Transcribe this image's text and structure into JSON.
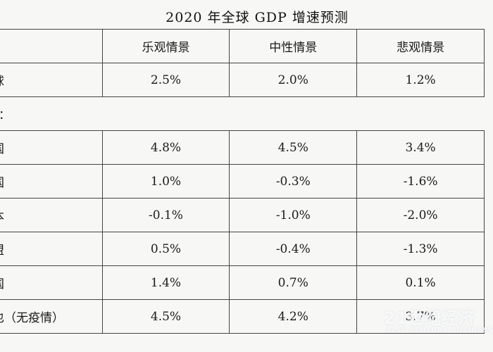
{
  "title": "2020 年全球 GDP 增速预测",
  "header": {
    "label": "",
    "col1": "乐观情景",
    "col2": "中性情景",
    "col3": "悲观情景"
  },
  "rows": [
    {
      "label": "球",
      "c1": "2.5%",
      "c2": "2.0%",
      "c3": "1.2%",
      "type": "data"
    },
    {
      "label": "中：",
      "type": "section"
    },
    {
      "label": "国",
      "c1": "4.8%",
      "c2": "4.5%",
      "c3": "3.4%",
      "type": "data"
    },
    {
      "label": "国",
      "c1": "1.0%",
      "c2": "-0.3%",
      "c3": "-1.6%",
      "type": "data"
    },
    {
      "label": "本",
      "c1": "-0.1%",
      "c2": "-1.0%",
      "c3": "-2.0%",
      "type": "data"
    },
    {
      "label": "盟",
      "c1": "0.5%",
      "c2": "-0.4%",
      "c3": "-1.3%",
      "type": "data"
    },
    {
      "label": "国",
      "c1": "1.4%",
      "c2": "0.7%",
      "c3": "0.1%",
      "type": "data"
    },
    {
      "label": "也（无疫情）",
      "c1": "4.5%",
      "c2": "4.2%",
      "c3": "3.7%",
      "type": "data"
    }
  ],
  "watermark": {
    "main": "21世纪经济",
    "sub": "21ST CENTURY BUSINESS"
  }
}
